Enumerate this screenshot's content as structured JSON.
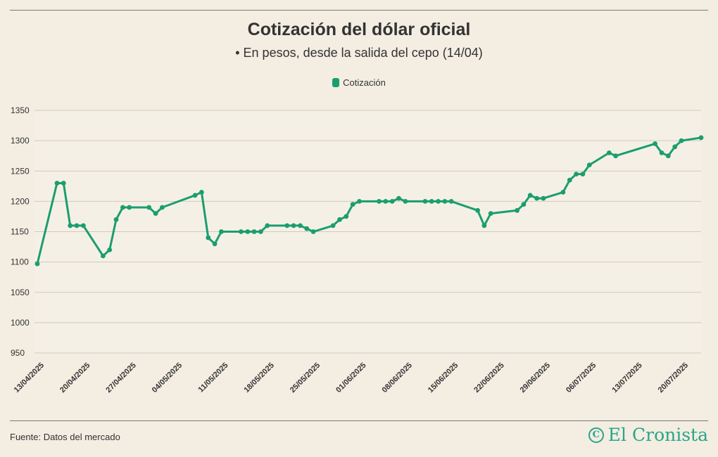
{
  "header": {
    "title": "Cotización del dólar oficial",
    "subtitle": "• En pesos, desde la salida del cepo (14/04)"
  },
  "legend": {
    "label": "Cotización",
    "color": "#1a9e6e"
  },
  "footer": {
    "source": "Fuente: Datos del mercado",
    "brand": "El Cronista",
    "brand_mark": "C",
    "brand_color": "#2aa58a"
  },
  "chart_data": {
    "type": "line",
    "title": "Cotización del dólar oficial",
    "subtitle": "• En pesos, desde la salida del cepo (14/04)",
    "xlabel": "",
    "ylabel": "",
    "ylim": [
      950,
      1350
    ],
    "yticks": [
      950,
      1000,
      1050,
      1100,
      1150,
      1200,
      1250,
      1300,
      1350
    ],
    "grid": true,
    "legend_position": "top-center",
    "x_start": "13/04/2025",
    "xticks": [
      {
        "day": 0,
        "label": "13/04/2025"
      },
      {
        "day": 7,
        "label": "20/04/2025"
      },
      {
        "day": 14,
        "label": "27/04/2025"
      },
      {
        "day": 21,
        "label": "04/05/2025"
      },
      {
        "day": 28,
        "label": "11/05/2025"
      },
      {
        "day": 35,
        "label": "18/05/2025"
      },
      {
        "day": 42,
        "label": "25/05/2025"
      },
      {
        "day": 49,
        "label": "01/06/2025"
      },
      {
        "day": 56,
        "label": "08/06/2025"
      },
      {
        "day": 63,
        "label": "15/06/2025"
      },
      {
        "day": 70,
        "label": "22/06/2025"
      },
      {
        "day": 77,
        "label": "29/06/2025"
      },
      {
        "day": 84,
        "label": "06/07/2025"
      },
      {
        "day": 91,
        "label": "13/07/2025"
      },
      {
        "day": 98,
        "label": "20/07/2025"
      }
    ],
    "series": [
      {
        "name": "Cotización",
        "color": "#1a9e6e",
        "x_days": [
          0,
          3,
          4,
          5,
          6,
          7,
          10,
          11,
          12,
          13,
          14,
          17,
          18,
          19,
          24,
          25,
          26,
          27,
          28,
          31,
          32,
          33,
          34,
          35,
          38,
          39,
          40,
          41,
          42,
          45,
          46,
          47,
          48,
          49,
          52,
          53,
          54,
          55,
          56,
          59,
          60,
          61,
          62,
          63,
          67,
          68,
          69,
          73,
          74,
          75,
          76,
          77,
          80,
          81,
          82,
          83,
          84,
          87,
          88,
          94,
          95,
          96,
          97,
          98,
          101
        ],
        "values": [
          1097,
          1230,
          1230,
          1160,
          1160,
          1160,
          1110,
          1120,
          1170,
          1190,
          1190,
          1190,
          1180,
          1190,
          1210,
          1215,
          1140,
          1130,
          1150,
          1150,
          1150,
          1150,
          1150,
          1160,
          1160,
          1160,
          1160,
          1155,
          1150,
          1160,
          1170,
          1175,
          1195,
          1200,
          1200,
          1200,
          1200,
          1205,
          1200,
          1200,
          1200,
          1200,
          1200,
          1200,
          1185,
          1160,
          1180,
          1185,
          1195,
          1210,
          1205,
          1205,
          1215,
          1235,
          1245,
          1245,
          1260,
          1280,
          1275,
          1295,
          1280,
          1275,
          1290,
          1300,
          1305
        ]
      }
    ]
  }
}
